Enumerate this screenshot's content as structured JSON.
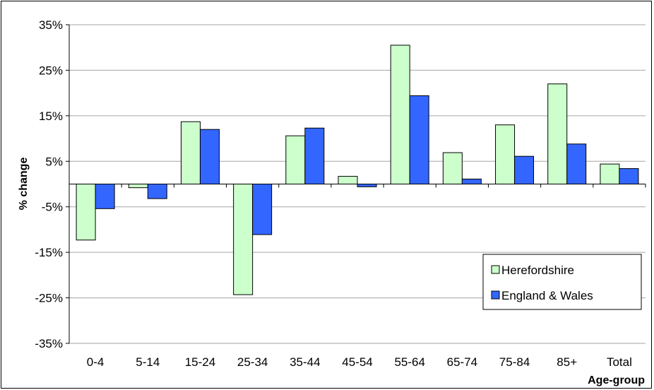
{
  "chart_data": {
    "type": "bar",
    "title": "",
    "xlabel": "Age-group",
    "ylabel": "% change",
    "categories": [
      "0-4",
      "5-14",
      "15-24",
      "25-34",
      "35-44",
      "45-54",
      "55-64",
      "65-74",
      "75-84",
      "85+",
      "Total"
    ],
    "series": [
      {
        "name": "Herefordshire",
        "color": "#ccffcc",
        "values": [
          -12.3,
          -0.8,
          13.7,
          -24.3,
          10.6,
          1.7,
          30.5,
          6.9,
          13.0,
          22.0,
          4.4
        ]
      },
      {
        "name": "England & Wales",
        "color": "#3366ff",
        "values": [
          -5.4,
          -3.2,
          12.0,
          -11.1,
          12.3,
          -0.6,
          19.4,
          1.1,
          6.1,
          8.8,
          3.4
        ]
      }
    ],
    "ylim": [
      -35,
      35
    ],
    "yticks": [
      -35,
      -25,
      -15,
      -5,
      5,
      15,
      25,
      35
    ],
    "ytick_labels": [
      "-35%",
      "-25%",
      "-15%",
      "-5%",
      "5%",
      "15%",
      "25%",
      "35%"
    ],
    "grid": true,
    "legend_position": "lower-right"
  }
}
